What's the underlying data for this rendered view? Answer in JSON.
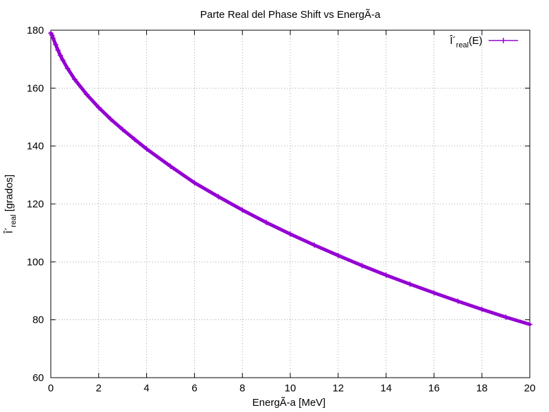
{
  "chart_data": {
    "type": "line",
    "title": "Parte Real del Phase Shift vs EnergÃ-a",
    "xlabel": "EnergÃ-a [MeV]",
    "ylabel": {
      "base": "Î´",
      "sub": "real",
      "suffix": " [grados]"
    },
    "xlim": [
      0,
      20
    ],
    "ylim": [
      60,
      180
    ],
    "xticks": [
      "0",
      "2",
      "4",
      "6",
      "8",
      "10",
      "12",
      "14",
      "16",
      "18",
      "20"
    ],
    "yticks": [
      "60",
      "80",
      "100",
      "120",
      "140",
      "160",
      "180"
    ],
    "grid": true,
    "legend_position": "top-right",
    "series": [
      {
        "name": {
          "base": "Î´",
          "sub": "real",
          "suffix": "(E)"
        },
        "color": "#9400d3",
        "x": [
          0.0,
          0.05,
          0.1,
          0.2,
          0.3,
          0.4,
          0.5,
          0.7,
          1.0,
          1.5,
          2.0,
          2.5,
          3.0,
          3.5,
          4.0,
          5.0,
          6.0,
          7.0,
          8.0,
          9.0,
          10.0,
          11.0,
          12.0,
          13.0,
          14.0,
          15.0,
          16.0,
          17.0,
          18.0,
          19.0,
          20.0
        ],
        "y": [
          179.0,
          178.3,
          177.2,
          175.1,
          173.1,
          171.3,
          169.7,
          166.8,
          163.0,
          157.8,
          153.3,
          149.3,
          145.7,
          142.3,
          139.0,
          133.0,
          127.3,
          122.5,
          117.9,
          113.6,
          109.6,
          105.8,
          102.2,
          98.7,
          95.4,
          92.3,
          89.3,
          86.4,
          83.6,
          80.9,
          78.4
        ]
      }
    ]
  }
}
